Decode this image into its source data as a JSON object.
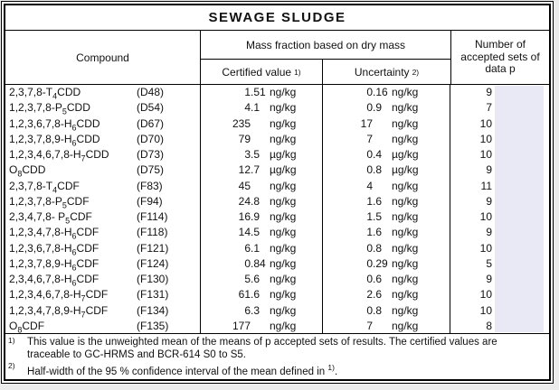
{
  "title": "SEWAGE SLUDGE",
  "header": {
    "compound": "Compound",
    "mass_fraction": "Mass fraction based on dry mass",
    "certified": "Certified value",
    "certified_note_ref": "1)",
    "uncertainty": "Uncertainty",
    "uncertainty_note_ref": "2)",
    "accepted_sets": "Number of accepted sets of data p"
  },
  "rows": [
    {
      "compound": "2,3,7,8-T₄CDD",
      "code": "(D48)",
      "certified_value": "1.51",
      "certified_unit": "ng/kg",
      "uncertainty_value": "0.16",
      "uncertainty_unit": "ng/kg",
      "sets": "9"
    },
    {
      "compound": "1,2,3,7,8-P₅CDD",
      "code": "(D54)",
      "certified_value": "4.1",
      "certified_unit": "ng/kg",
      "uncertainty_value": "0.9",
      "uncertainty_unit": "ng/kg",
      "sets": "7"
    },
    {
      "compound": "1,2,3,6,7,8-H₆CDD",
      "code": "(D67)",
      "certified_value": "235",
      "certified_unit": "ng/kg",
      "uncertainty_value": "17",
      "uncertainty_unit": "ng/kg",
      "sets": "10"
    },
    {
      "compound": "1,2,3,7,8,9-H₆CDD",
      "code": "(D70)",
      "certified_value": "79",
      "certified_unit": "ng/kg",
      "uncertainty_value": "7",
      "uncertainty_unit": "ng/kg",
      "sets": "10"
    },
    {
      "compound": "1,2,3,4,6,7,8-H₇CDD",
      "code": "(D73)",
      "certified_value": "3.5",
      "certified_unit": "µg/kg",
      "uncertainty_value": "0.4",
      "uncertainty_unit": "µg/kg",
      "sets": "10"
    },
    {
      "compound": "O₈CDD",
      "code": "(D75)",
      "certified_value": "12.7",
      "certified_unit": "µg/kg",
      "uncertainty_value": "0.8",
      "uncertainty_unit": "µg/kg",
      "sets": "9"
    },
    {
      "compound": "2,3,7,8-T₄CDF",
      "code": "(F83)",
      "certified_value": "45",
      "certified_unit": "ng/kg",
      "uncertainty_value": "4",
      "uncertainty_unit": "ng/kg",
      "sets": "11"
    },
    {
      "compound": "1,2,3,7,8-P₅CDF",
      "code": "(F94)",
      "certified_value": "24.8",
      "certified_unit": "ng/kg",
      "uncertainty_value": "1.6",
      "uncertainty_unit": "ng/kg",
      "sets": "9"
    },
    {
      "compound": "2,3,4,7,8- P₅CDF",
      "code": "(F114)",
      "certified_value": "16.9",
      "certified_unit": "ng/kg",
      "uncertainty_value": "1.5",
      "uncertainty_unit": "ng/kg",
      "sets": "10"
    },
    {
      "compound": "1,2,3,4,7,8-H₆CDF",
      "code": "(F118)",
      "certified_value": "14.5",
      "certified_unit": "ng/kg",
      "uncertainty_value": "1.6",
      "uncertainty_unit": "ng/kg",
      "sets": "9"
    },
    {
      "compound": "1,2,3,6,7,8-H₆CDF",
      "code": "(F121)",
      "certified_value": "6.1",
      "certified_unit": "ng/kg",
      "uncertainty_value": "0.8",
      "uncertainty_unit": "ng/kg",
      "sets": "10"
    },
    {
      "compound": "1,2,3,7,8,9-H₆CDF",
      "code": "(F124)",
      "certified_value": "0.84",
      "certified_unit": "ng/kg",
      "uncertainty_value": "0.29",
      "uncertainty_unit": "ng/kg",
      "sets": "5"
    },
    {
      "compound": "2,3,4,6,7,8-H₆CDF",
      "code": "(F130)",
      "certified_value": "5.6",
      "certified_unit": "ng/kg",
      "uncertainty_value": "0.6",
      "uncertainty_unit": "ng/kg",
      "sets": "9"
    },
    {
      "compound": "1,2,3,4,6,7,8-H₇CDF",
      "code": "(F131)",
      "certified_value": "61.6",
      "certified_unit": "ng/kg",
      "uncertainty_value": "2.6",
      "uncertainty_unit": "ng/kg",
      "sets": "10"
    },
    {
      "compound": "1,2,3,4,7,8,9-H₇CDF",
      "code": "(F134)",
      "certified_value": "6.3",
      "certified_unit": "ng/kg",
      "uncertainty_value": "0.8",
      "uncertainty_unit": "ng/kg",
      "sets": "10"
    },
    {
      "compound": "O₈CDF",
      "code": "(F135)",
      "certified_value": "177",
      "certified_unit": "ng/kg",
      "uncertainty_value": "7",
      "uncertainty_unit": "ng/kg",
      "sets": "8"
    }
  ],
  "footnotes": [
    {
      "marker": "1)",
      "text": "This value is the unweighted mean of the means of p accepted sets of results. The certified values are traceable to GC-HRMS and BCR-614 S0 to S5."
    },
    {
      "marker": "2)",
      "text": "Half-width of the 95 % confidence interval of the mean defined in ¹⁾."
    }
  ],
  "colors": {
    "highlight": "#e9e9f6",
    "page_background": "#ebebeb",
    "border": "#000000"
  }
}
